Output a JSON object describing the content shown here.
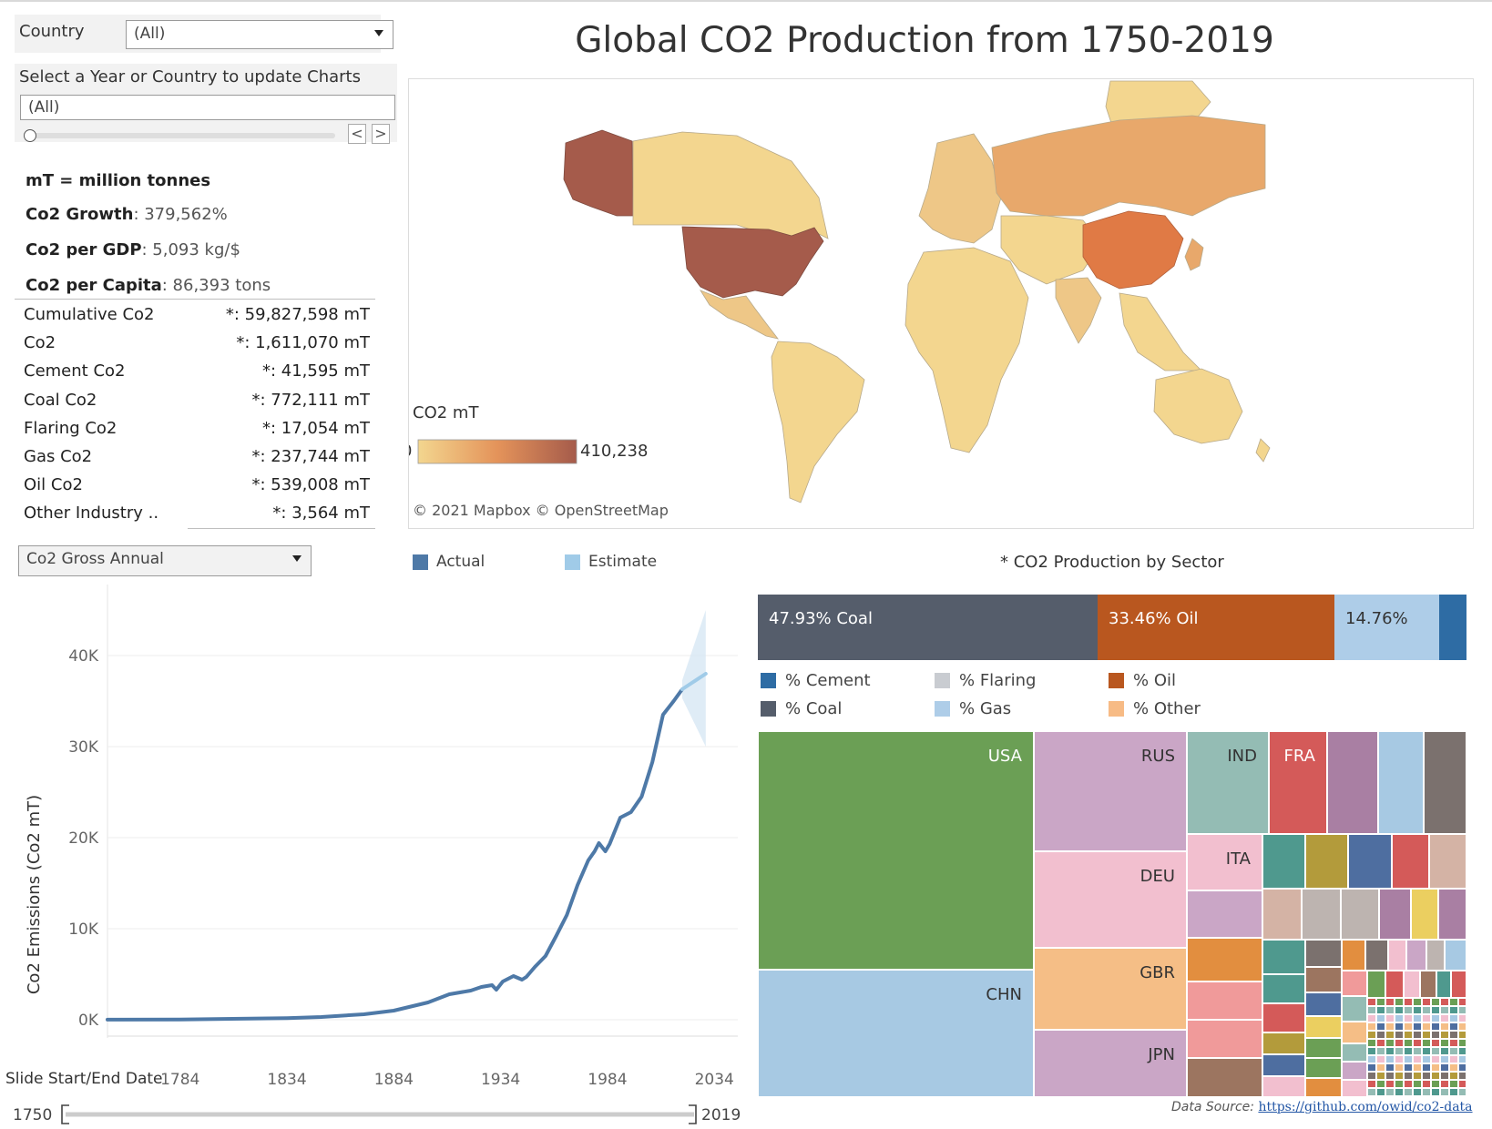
{
  "title": "Global CO2 Production from 1750-2019",
  "filters": {
    "country_label": "Country",
    "country_value": "(All)",
    "select_prompt": "Select a Year or Country to update Charts",
    "year_value": "(All)",
    "prev_label": "<",
    "next_label": ">"
  },
  "summary": {
    "unit_note": "mT = million tonnes",
    "growth_label": "Co2 Growth",
    "growth_value": ": 379,562%",
    "gdp_label": "Co2 per GDP",
    "gdp_value": ": 5,093 kg/$",
    "capita_label": "Co2 per Capita",
    "capita_value": ": 86,393 tons"
  },
  "metrics": [
    {
      "name": "Cumulative Co2",
      "value": "*: 59,827,598 mT"
    },
    {
      "name": "Co2",
      "value": "*: 1,611,070 mT"
    },
    {
      "name": "Cement Co2",
      "value": "*: 41,595 mT"
    },
    {
      "name": "Coal Co2",
      "value": "*: 772,111 mT"
    },
    {
      "name": "Flaring Co2",
      "value": "*: 17,054 mT"
    },
    {
      "name": "Gas Co2",
      "value": "*: 237,744 mT"
    },
    {
      "name": "Oil Co2",
      "value": "*: 539,008 mT"
    },
    {
      "name": "Other Industry ..",
      "value": "*: 3,564 mT"
    }
  ],
  "measure_dropdown": "Co2 Gross Annual",
  "map": {
    "legend_title": "CO2 mT",
    "legend_min": "0",
    "legend_max": "410,238",
    "attribution": "© 2021 Mapbox  © OpenStreetMap",
    "colors": {
      "low": "#f3d68f",
      "mid": "#e4935a",
      "high": "#a55b4b"
    }
  },
  "line_legend": {
    "actual": "Actual",
    "estimate": "Estimate",
    "actual_color": "#4e79a7",
    "estimate_color": "#a0cbe8"
  },
  "chart_data": {
    "type": "line",
    "ylabel": "Co2 Emissions (Co2 mT)",
    "xlabel": "Slide Start/End Date",
    "ylim": [
      0,
      47000
    ],
    "xlim": [
      1750,
      2045
    ],
    "yticks": [
      {
        "v": 0,
        "t": "0K"
      },
      {
        "v": 10000,
        "t": "10K"
      },
      {
        "v": 20000,
        "t": "20K"
      },
      {
        "v": 30000,
        "t": "30K"
      },
      {
        "v": 40000,
        "t": "40K"
      }
    ],
    "xticks": [
      {
        "v": 1784,
        "t": "1784"
      },
      {
        "v": 1834,
        "t": "1834"
      },
      {
        "v": 1884,
        "t": "1884"
      },
      {
        "v": 1934,
        "t": "1934"
      },
      {
        "v": 1984,
        "t": "1984"
      },
      {
        "v": 2034,
        "t": "2034"
      }
    ],
    "series": [
      {
        "name": "Actual",
        "x": [
          1750,
          1784,
          1834,
          1850,
          1870,
          1884,
          1900,
          1910,
          1920,
          1925,
          1930,
          1932,
          1935,
          1940,
          1944,
          1946,
          1950,
          1955,
          1960,
          1965,
          1970,
          1975,
          1978,
          1980,
          1983,
          1985,
          1990,
          1995,
          2000,
          2005,
          2010,
          2015,
          2019
        ],
        "y": [
          10,
          30,
          180,
          300,
          600,
          1000,
          1900,
          2800,
          3200,
          3600,
          3800,
          3300,
          4200,
          4800,
          4400,
          4700,
          5800,
          7000,
          9200,
          11500,
          14800,
          17500,
          18500,
          19400,
          18500,
          19300,
          22200,
          22800,
          24500,
          28300,
          33500,
          35000,
          36300
        ]
      },
      {
        "name": "Estimate",
        "x": [
          2019,
          2030
        ],
        "y": [
          36300,
          38000
        ]
      }
    ],
    "band": {
      "x": [
        2019,
        2030
      ],
      "lower": [
        35300,
        30000
      ],
      "upper": [
        37300,
        45000
      ]
    },
    "range_slider": {
      "start": "1750",
      "end": "2019"
    }
  },
  "sector": {
    "title": "* CO2 Production by Sector",
    "bars": [
      {
        "label": "47.93% Coal",
        "pct": 47.93,
        "color": "#555d6b"
      },
      {
        "label": "33.46% Oil",
        "pct": 33.46,
        "color": "#b9571f"
      },
      {
        "label": "14.76%",
        "pct": 14.76,
        "color": "#aecde8"
      },
      {
        "label": "",
        "pct": 3.85,
        "color": "#2e6ca4"
      }
    ],
    "legend": [
      {
        "label": "% Cement",
        "color": "#2e6ca4"
      },
      {
        "label": "% Flaring",
        "color": "#c9ccd1"
      },
      {
        "label": "% Oil",
        "color": "#b9571f"
      },
      {
        "label": "% Coal",
        "color": "#555d6b"
      },
      {
        "label": "% Gas",
        "color": "#aecde8"
      },
      {
        "label": "% Other",
        "color": "#f7bb85"
      }
    ]
  },
  "treemap": {
    "labels": {
      "usa": "USA",
      "chn": "CHN",
      "rus": "RUS",
      "deu": "DEU",
      "gbr": "GBR",
      "jpn": "JPN",
      "ind": "IND",
      "fra": "FRA",
      "ita": "ITA"
    }
  },
  "data_source": {
    "label": "Data Source: ",
    "link": "https://github.com/owid/co2-data"
  }
}
